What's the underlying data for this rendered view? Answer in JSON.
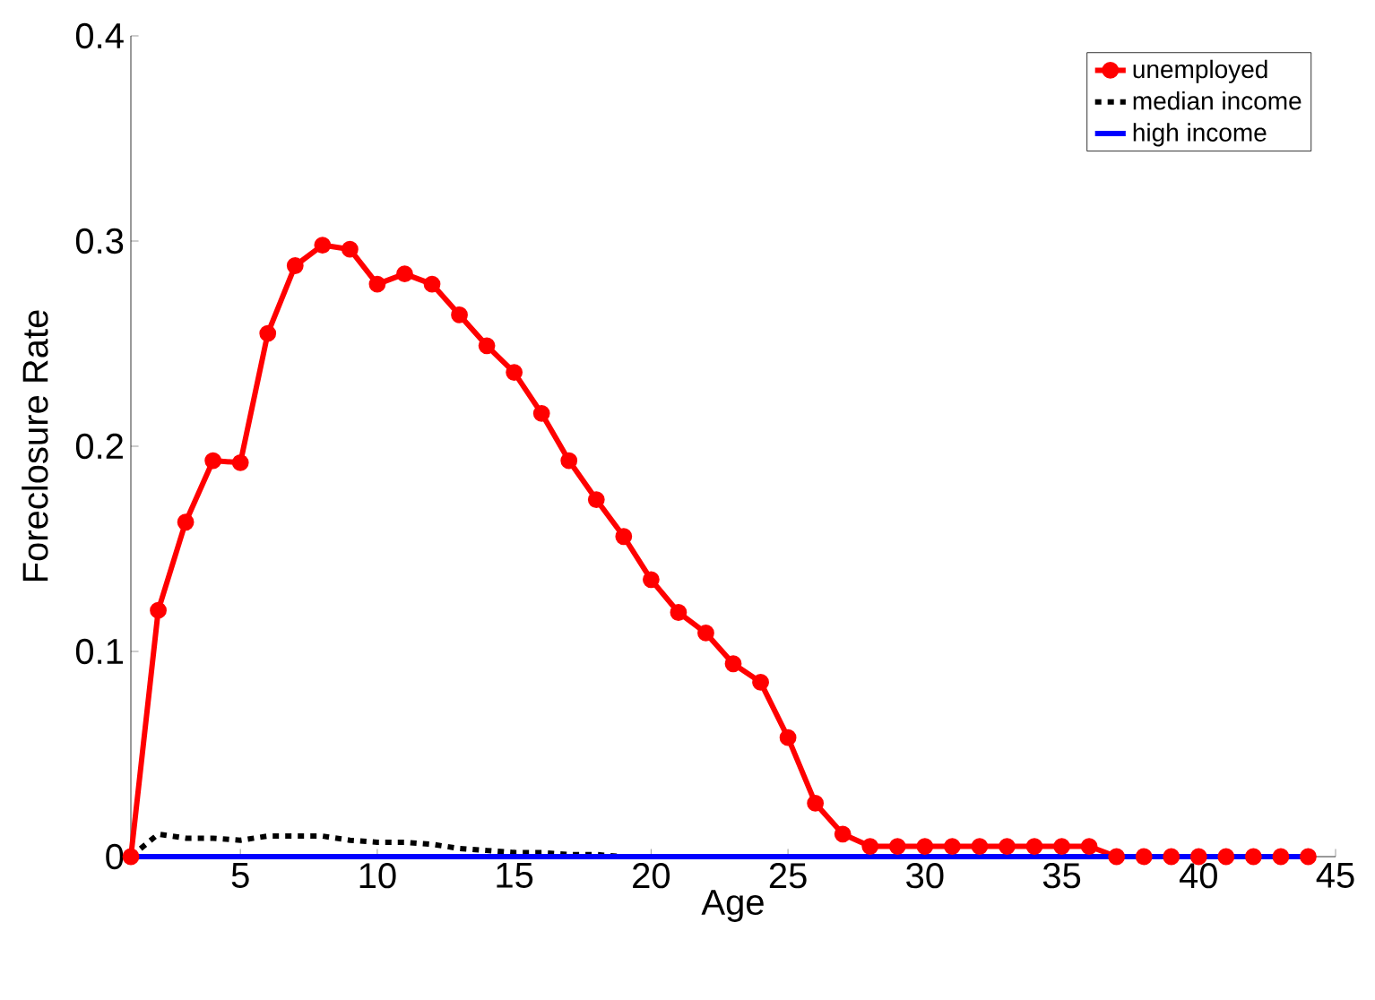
{
  "chart_data": {
    "type": "line",
    "xlabel": "Age",
    "ylabel": "Foreclosure Rate",
    "x": [
      1,
      2,
      3,
      4,
      5,
      6,
      7,
      8,
      9,
      10,
      11,
      12,
      13,
      14,
      15,
      16,
      17,
      18,
      19,
      20,
      21,
      22,
      23,
      24,
      25,
      26,
      27,
      28,
      29,
      30,
      31,
      32,
      33,
      34,
      35,
      36,
      37,
      38,
      39,
      40,
      41,
      42,
      43,
      44
    ],
    "xlim": [
      1,
      45
    ],
    "xticks": [
      5,
      10,
      15,
      20,
      25,
      30,
      35,
      40,
      45
    ],
    "ylim": [
      0,
      0.4
    ],
    "yticks": [
      0,
      0.1,
      0.2,
      0.3,
      0.4
    ],
    "legend": "top right",
    "grid": false,
    "series": [
      {
        "name": "unemployed",
        "color": "#ff0000",
        "marker": "circle",
        "line_style": "solid",
        "values": [
          0,
          0.12,
          0.163,
          0.193,
          0.192,
          0.255,
          0.288,
          0.298,
          0.296,
          0.279,
          0.284,
          0.279,
          0.264,
          0.249,
          0.236,
          0.216,
          0.193,
          0.174,
          0.156,
          0.135,
          0.119,
          0.109,
          0.094,
          0.085,
          0.058,
          0.026,
          0.011,
          0.005,
          0.005,
          0.005,
          0.005,
          0.005,
          0.005,
          0.005,
          0.005,
          0.005,
          0,
          0,
          0,
          0,
          0,
          0,
          0,
          0
        ]
      },
      {
        "name": "median income",
        "color": "#000000",
        "marker": "none",
        "line_style": "dotted",
        "values": [
          0,
          0.011,
          0.009,
          0.009,
          0.008,
          0.01,
          0.01,
          0.01,
          0.008,
          0.007,
          0.007,
          0.006,
          0.004,
          0.003,
          0.002,
          0.002,
          0.001,
          0.001,
          0,
          null,
          null,
          null,
          null,
          null,
          null,
          null,
          null,
          null,
          null,
          null,
          null,
          null,
          null,
          null,
          null,
          null,
          null,
          null,
          null,
          null,
          null,
          null,
          null,
          null
        ]
      },
      {
        "name": "high income",
        "color": "#0000ff",
        "marker": "none",
        "line_style": "solid",
        "values": [
          0,
          0,
          0,
          0,
          0,
          0,
          0,
          0,
          0,
          0,
          0,
          0,
          0,
          0,
          0,
          0,
          0,
          0,
          0,
          0,
          0,
          0,
          0,
          0,
          0,
          0,
          0,
          0,
          0,
          0,
          0,
          0,
          0,
          0,
          0,
          0,
          0,
          0,
          0,
          0,
          0,
          0,
          0,
          0
        ]
      }
    ]
  }
}
